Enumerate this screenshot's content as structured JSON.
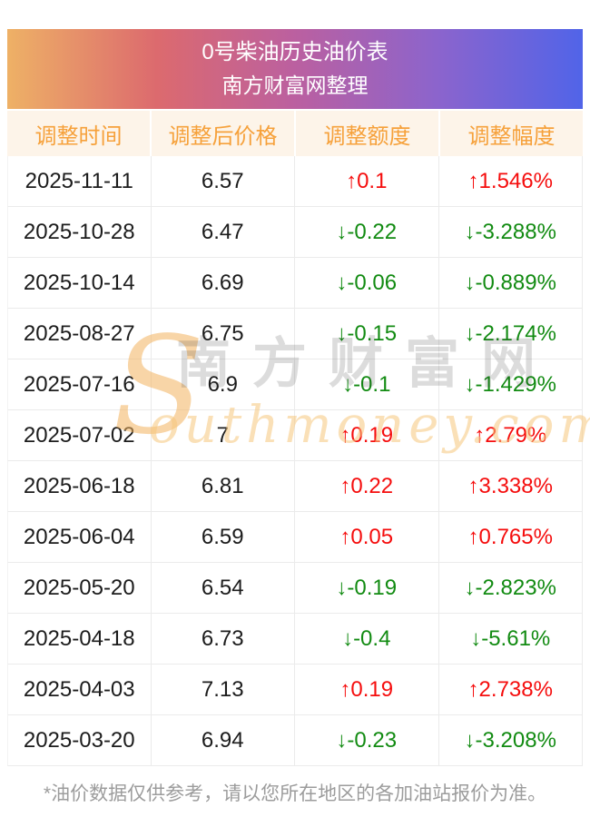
{
  "banner": {
    "title": "0号柴油历史油价表",
    "subtitle": "南方财富网整理"
  },
  "chart_data": {
    "type": "table",
    "title": "0号柴油历史油价表",
    "subtitle": "南方财富网整理",
    "columns": [
      "调整时间",
      "调整后价格",
      "调整额度",
      "调整幅度"
    ],
    "rows": [
      {
        "date": "2025-11-11",
        "price": "6.57",
        "change": "↑0.1",
        "pct": "↑1.546%",
        "direction": "up"
      },
      {
        "date": "2025-10-28",
        "price": "6.47",
        "change": "↓-0.22",
        "pct": "↓-3.288%",
        "direction": "down"
      },
      {
        "date": "2025-10-14",
        "price": "6.69",
        "change": "↓-0.06",
        "pct": "↓-0.889%",
        "direction": "down"
      },
      {
        "date": "2025-08-27",
        "price": "6.75",
        "change": "↓-0.15",
        "pct": "↓-2.174%",
        "direction": "down"
      },
      {
        "date": "2025-07-16",
        "price": "6.9",
        "change": "↓-0.1",
        "pct": "↓-1.429%",
        "direction": "down"
      },
      {
        "date": "2025-07-02",
        "price": "7",
        "change": "↑0.19",
        "pct": "↑2.79%",
        "direction": "up"
      },
      {
        "date": "2025-06-18",
        "price": "6.81",
        "change": "↑0.22",
        "pct": "↑3.338%",
        "direction": "up"
      },
      {
        "date": "2025-06-04",
        "price": "6.59",
        "change": "↑0.05",
        "pct": "↑0.765%",
        "direction": "up"
      },
      {
        "date": "2025-05-20",
        "price": "6.54",
        "change": "↓-0.19",
        "pct": "↓-2.823%",
        "direction": "down"
      },
      {
        "date": "2025-04-18",
        "price": "6.73",
        "change": "↓-0.4",
        "pct": "↓-5.61%",
        "direction": "down"
      },
      {
        "date": "2025-04-03",
        "price": "7.13",
        "change": "↑0.19",
        "pct": "↑2.738%",
        "direction": "up"
      },
      {
        "date": "2025-03-20",
        "price": "6.94",
        "change": "↓-0.23",
        "pct": "↓-3.208%",
        "direction": "down"
      }
    ]
  },
  "watermark": {
    "initial": "S",
    "latin": "outhmoney.com",
    "cn": "南方财富网"
  },
  "footer": {
    "note": "*油价数据仅供参考，请以您所在地区的各加油站报价为准。"
  },
  "colors": {
    "up": "#f50d0d",
    "down": "#128b12",
    "header_text": "#f6a13b",
    "header_bg": "#fdf4e9",
    "gradient_left": "#eeb166",
    "gradient_right": "#5164e8"
  }
}
